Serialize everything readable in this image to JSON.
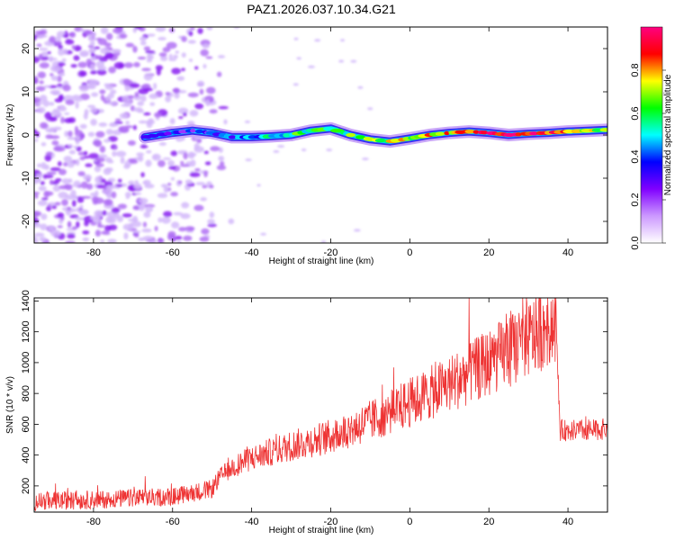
{
  "title": "PAZ1.2026.037.10.34.G21",
  "chart_data": [
    {
      "type": "heatmap",
      "name": "spectrogram",
      "xlabel": "Height of straight line (km)",
      "ylabel": "Frequency (Hz)",
      "xlim": [
        -95,
        50
      ],
      "ylim": [
        -25,
        25
      ],
      "xticks": [
        -80,
        -60,
        -40,
        -20,
        0,
        20,
        40
      ],
      "yticks": [
        -20,
        -10,
        0,
        10,
        20
      ],
      "colorbar": {
        "label": "Normalized spectral amplitude",
        "range": [
          0,
          1
        ],
        "ticks": [
          "0.0",
          "0.2",
          "0.4",
          "0.6",
          "0.8"
        ],
        "tick_values": [
          0.0,
          0.2,
          0.4,
          0.6,
          0.8
        ],
        "colors": [
          "#ffffff",
          "#cc99ff",
          "#8000ff",
          "#0000ff",
          "#00ffff",
          "#00ff00",
          "#ffff00",
          "#ff0000",
          "#ff0080"
        ]
      },
      "ridge": {
        "description": "central frequency of signal vs height",
        "x": [
          -67,
          -60,
          -55,
          -50,
          -45,
          -40,
          -35,
          -30,
          -25,
          -20,
          -15,
          -10,
          -5,
          0,
          5,
          10,
          15,
          20,
          25,
          30,
          35,
          40,
          45,
          50
        ],
        "y": [
          -0.5,
          0.5,
          1.0,
          0.5,
          -0.5,
          -0.5,
          -0.3,
          0.0,
          1.0,
          1.5,
          0.0,
          -1.0,
          -1.5,
          -0.8,
          0.0,
          0.5,
          0.8,
          0.5,
          0.0,
          0.3,
          0.5,
          0.8,
          1.0,
          1.2
        ],
        "amplitude": [
          0.3,
          0.35,
          0.3,
          0.3,
          0.4,
          0.45,
          0.5,
          0.55,
          0.6,
          0.6,
          0.6,
          0.65,
          0.7,
          0.7,
          0.75,
          0.8,
          0.85,
          0.9,
          0.95,
          0.95,
          0.9,
          0.8,
          0.7,
          0.6
        ]
      },
      "noise_region_x": [
        -95,
        -45
      ]
    },
    {
      "type": "line",
      "name": "snr",
      "color": "#ee3333",
      "xlabel": "Height of straight line (km)",
      "ylabel": "SNR (10 * v/v)",
      "xlim": [
        -95,
        50
      ],
      "ylim": [
        30,
        1420
      ],
      "xticks": [
        -80,
        -60,
        -40,
        -20,
        0,
        20,
        40
      ],
      "yticks": [
        200,
        400,
        600,
        800,
        1000,
        1200,
        1400
      ],
      "trend": {
        "x": [
          -95,
          -80,
          -60,
          -50,
          -48,
          -45,
          -40,
          -30,
          -20,
          -10,
          0,
          10,
          20,
          30,
          36,
          37,
          38,
          45,
          50
        ],
        "y": [
          100,
          110,
          130,
          180,
          260,
          320,
          380,
          460,
          520,
          620,
          740,
          860,
          1000,
          1150,
          1260,
          1260,
          560,
          560,
          570
        ]
      }
    }
  ]
}
